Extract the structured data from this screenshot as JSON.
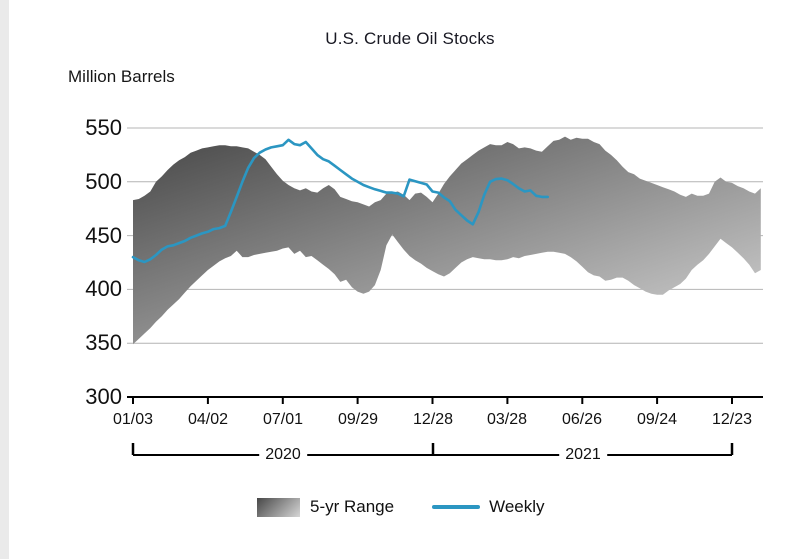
{
  "title": "U.S. Crude Oil Stocks",
  "y_axis": {
    "label": "Million Barrels",
    "ticks": [
      550,
      500,
      450,
      400,
      350,
      300
    ]
  },
  "x_axis": {
    "tick_labels": [
      "01/03",
      "04/02",
      "07/01",
      "09/29",
      "12/28",
      "03/28",
      "06/26",
      "09/24",
      "12/23"
    ],
    "year_groups": [
      {
        "label": "2020"
      },
      {
        "label": "2021"
      }
    ]
  },
  "legend": {
    "range_label": "5-yr Range",
    "weekly_label": "Weekly"
  },
  "colors": {
    "weekly_line": "#2b96c2",
    "band_dark": "#474747",
    "band_light": "#d6d6d6",
    "grid": "#b4b4b4",
    "axis": "#000000",
    "text": "#1b1b1b"
  },
  "chart_data": {
    "type": "area",
    "title": "U.S. Crude Oil Stocks",
    "ylabel": "Million Barrels",
    "ylim": [
      300,
      550
    ],
    "grid": true,
    "x_unit": "weeks, first point 01/03/2020, tick every 13 weeks",
    "x_tick_labels": [
      "01/03",
      "04/02",
      "07/01",
      "09/29",
      "12/28",
      "03/28",
      "06/26",
      "09/24",
      "12/23"
    ],
    "year_groups": [
      "2020",
      "2021"
    ],
    "series": [
      {
        "name": "5-yr Range max",
        "values": [
          483,
          484,
          487,
          491,
          500,
          505,
          511,
          516,
          520,
          523,
          527,
          529,
          531,
          532,
          533,
          534,
          534,
          533,
          533,
          532,
          531,
          528,
          525,
          521,
          514,
          507,
          501,
          497,
          494,
          492,
          494,
          491,
          490,
          494,
          497,
          493,
          486,
          484,
          482,
          481,
          479,
          477,
          481,
          483,
          489,
          490,
          491,
          488,
          483,
          489,
          490,
          486,
          481,
          489,
          498,
          505,
          511,
          517,
          521,
          525,
          529,
          532,
          535,
          534,
          534,
          537,
          535,
          531,
          532,
          531,
          529,
          528,
          533,
          538,
          539,
          542,
          539,
          541,
          540,
          540,
          537,
          535,
          529,
          525,
          520,
          514,
          509,
          507,
          503,
          501,
          499,
          497,
          495,
          493,
          491,
          488,
          486,
          489,
          487,
          487,
          489,
          500,
          504,
          500,
          499,
          496,
          494,
          491,
          489,
          494
        ]
      },
      {
        "name": "5-yr Range min",
        "values": [
          349,
          354,
          359,
          364,
          370,
          375,
          381,
          386,
          391,
          397,
          403,
          408,
          413,
          418,
          422,
          426,
          429,
          431,
          436,
          430,
          430,
          432,
          433,
          434,
          435,
          436,
          438,
          439,
          433,
          436,
          430,
          431,
          427,
          423,
          419,
          414,
          407,
          409,
          402,
          398,
          396,
          398,
          404,
          418,
          441,
          451,
          444,
          437,
          431,
          427,
          424,
          420,
          417,
          414,
          412,
          415,
          420,
          425,
          428,
          430,
          429,
          428,
          428,
          427,
          427,
          428,
          430,
          429,
          431,
          432,
          433,
          434,
          435,
          435,
          434,
          433,
          430,
          426,
          421,
          416,
          413,
          412,
          408,
          409,
          411,
          411,
          408,
          404,
          401,
          398,
          396,
          395,
          395,
          399,
          402,
          405,
          410,
          418,
          423,
          427,
          433,
          440,
          447,
          443,
          439,
          434,
          429,
          423,
          415,
          418
        ]
      },
      {
        "name": "Weekly",
        "values": [
          430,
          427,
          425.5,
          428,
          432,
          437,
          440,
          441,
          443,
          445,
          448,
          450,
          452,
          453.5,
          456,
          457,
          459,
          472,
          486,
          500,
          513,
          522,
          527,
          530,
          532,
          533,
          534,
          539,
          535,
          534,
          537,
          531,
          525,
          521,
          519,
          515,
          511,
          507,
          503,
          500,
          497,
          495,
          493,
          491.5,
          490,
          490,
          489,
          486.5,
          502,
          500.5,
          499,
          497.5,
          491,
          490,
          485.5,
          482,
          474,
          469,
          464,
          460.5,
          472,
          488,
          500,
          502.5,
          503,
          501.5,
          498,
          494,
          491,
          492,
          487,
          486,
          486
        ]
      }
    ]
  }
}
